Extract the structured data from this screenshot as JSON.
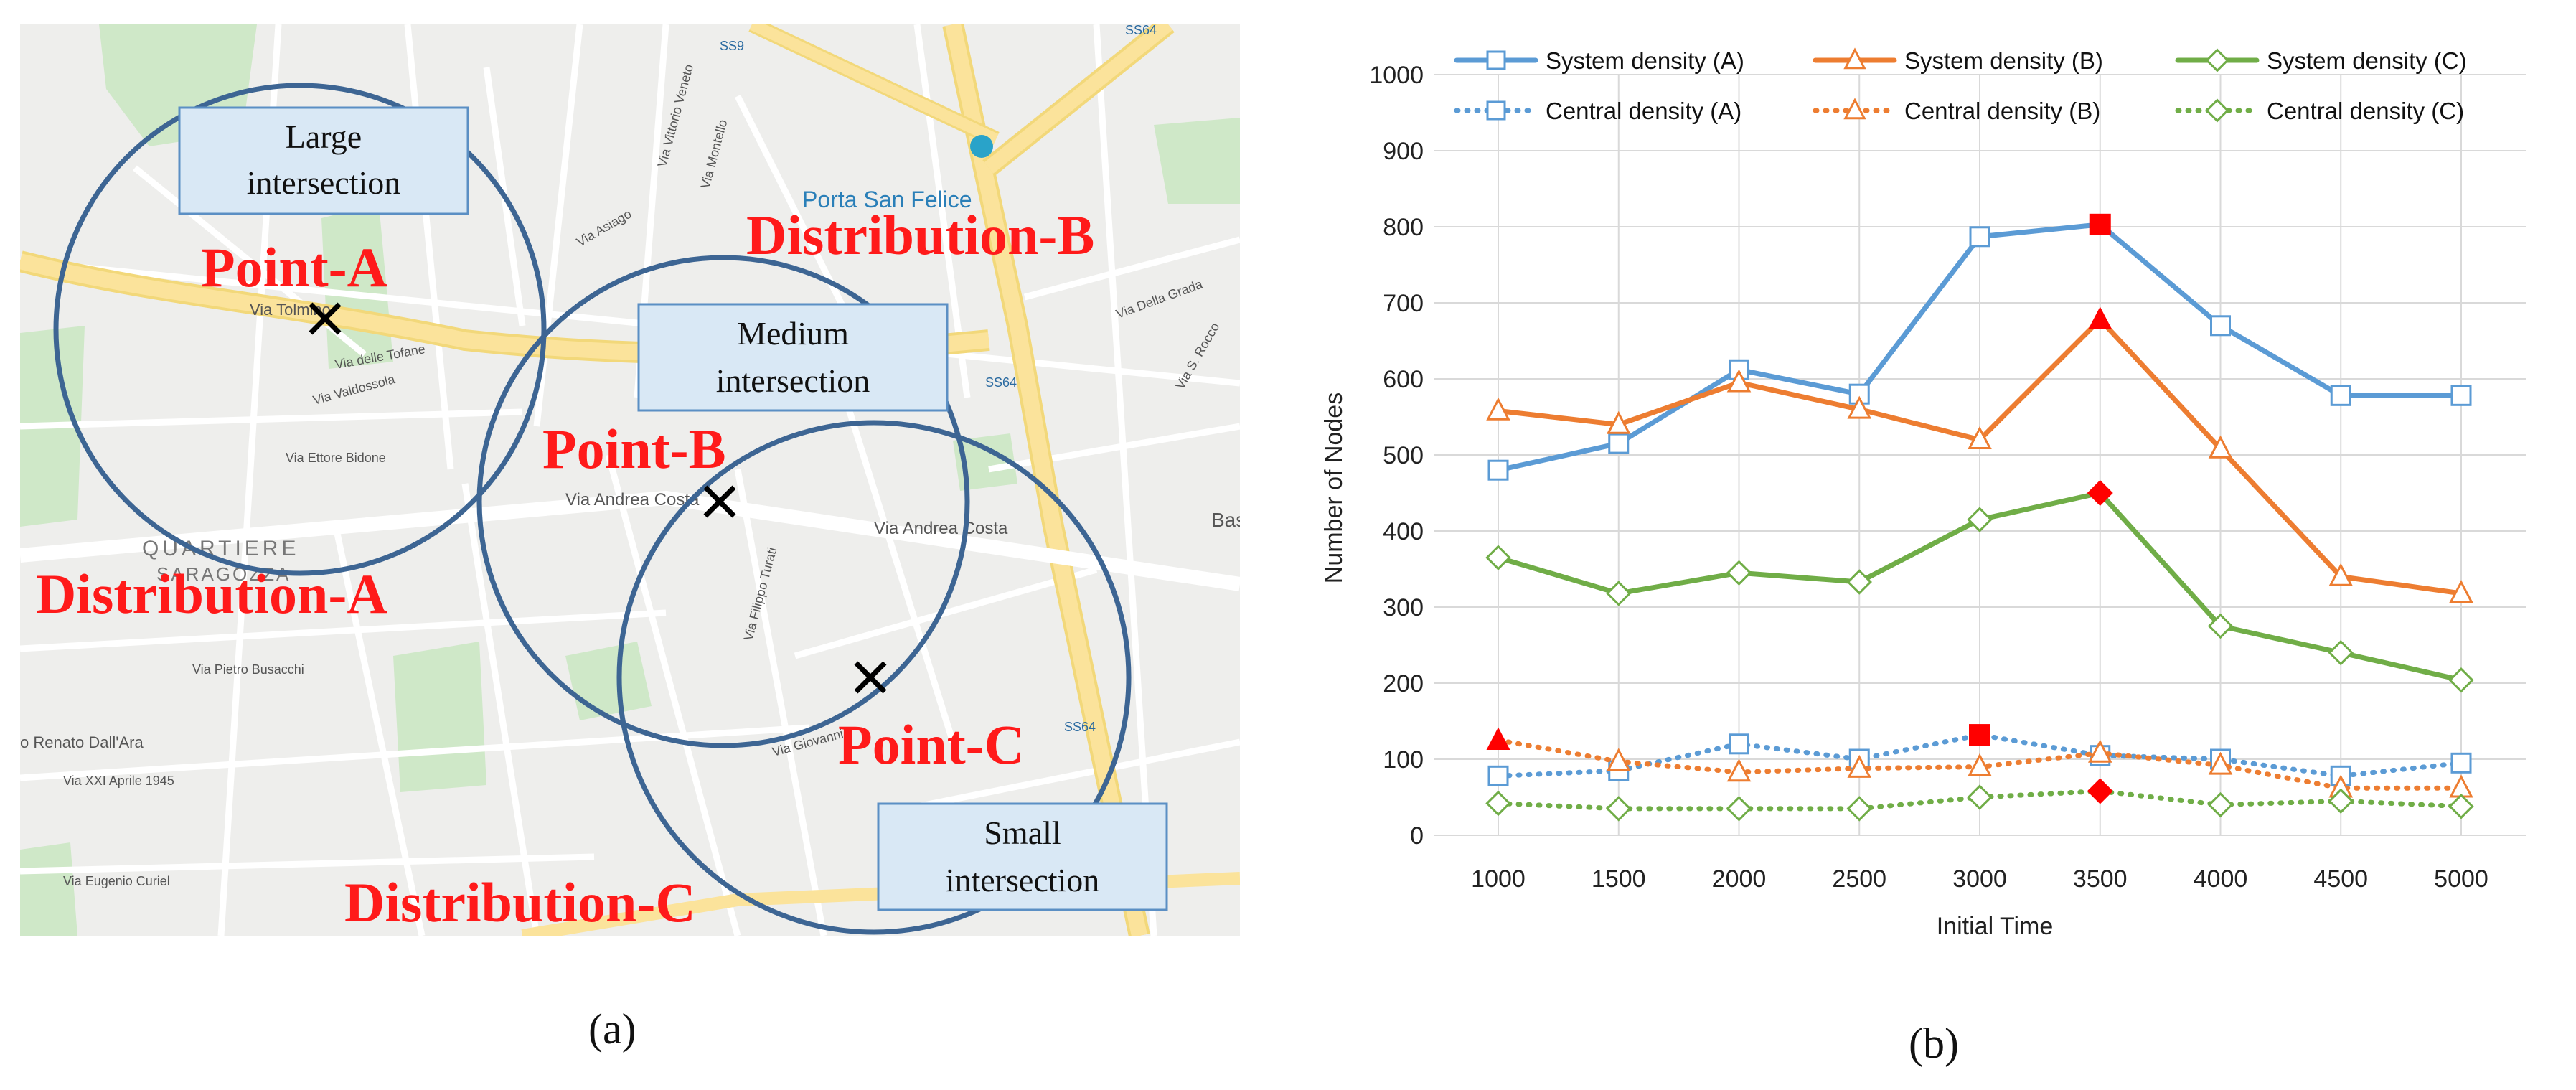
{
  "panel_a": {
    "caption": "(a)",
    "map_labels": {
      "point_a": "Point-A",
      "point_b": "Point-B",
      "point_c": "Point-C",
      "distribution_a": "Distribution-A",
      "distribution_b": "Distribution-B",
      "distribution_c": "Distribution-C"
    },
    "boxes": {
      "large": [
        "Large",
        "intersection"
      ],
      "medium": [
        "Medium",
        "intersection"
      ],
      "small": [
        "Small",
        "intersection"
      ]
    },
    "street_names": {
      "porta_san_felice": "Porta San Felice",
      "via_andrea_costa_1": "Via Andrea Costa",
      "via_andrea_costa_2": "Via Andrea Costa",
      "via_tolmino": "Via Tolmino",
      "quartiere": "QUARTIERE",
      "saragozza": "SARAGOZZA",
      "ss9": "SS9",
      "ss64a": "SS64",
      "ss64b": "SS64",
      "ss64c": "SS64",
      "renato": "o Renato Dall'Ara",
      "via_filippo_turati": "Via Filippo Turati",
      "via_pietro_busacchi": "Via Pietro Busacchi",
      "via_xxi_aprile": "Via XXI Aprile 1945",
      "via_eugenio_curiel": "Via Eugenio Curiel",
      "via_della_grada": "Via Della Grada",
      "via_s_rocco": "Via S. Rocco",
      "via_vittorio_veneto": "Via Vittorio Veneto",
      "via_montello": "Via Montello",
      "via_asiago": "Via Asiago",
      "via_delle_tofane": "Via delle Tofane",
      "via_valdossola": "Via Valdossola",
      "via_ettore_bidone": "Via Ettore Bidone",
      "via_giovanni": "Via Giovanni",
      "bas": "Bas"
    }
  },
  "panel_b": {
    "caption": "(b)"
  },
  "chart_data": {
    "type": "line",
    "title": "",
    "xlabel": "Initial Time",
    "ylabel": "Number of Nodes",
    "x": [
      1000,
      1500,
      2000,
      2500,
      3000,
      3500,
      4000,
      4500,
      5000
    ],
    "ylim": [
      0,
      1000
    ],
    "yticks": [
      0,
      100,
      200,
      300,
      400,
      500,
      600,
      700,
      800,
      900,
      1000
    ],
    "grid": "horizontal",
    "legend_position": "top",
    "series": [
      {
        "name": "System density (A)",
        "marker": "square",
        "style": "solid",
        "color": "#5b9bd5",
        "values": [
          480,
          515,
          612,
          580,
          787,
          803,
          670,
          578,
          578
        ],
        "highlight_index": 5
      },
      {
        "name": "System density (B)",
        "marker": "triangle",
        "style": "solid",
        "color": "#ed7d31",
        "values": [
          558,
          540,
          595,
          560,
          520,
          678,
          508,
          340,
          318
        ],
        "highlight_index": 5
      },
      {
        "name": "System density (C)",
        "marker": "diamond",
        "style": "solid",
        "color": "#70ad47",
        "values": [
          365,
          318,
          345,
          333,
          415,
          450,
          275,
          240,
          204
        ],
        "highlight_index": 5
      },
      {
        "name": "Central density (A)",
        "marker": "square",
        "style": "dotted",
        "color": "#5b9bd5",
        "values": [
          78,
          85,
          120,
          100,
          132,
          105,
          100,
          78,
          95
        ],
        "highlight_index": 4
      },
      {
        "name": "Central density (B)",
        "marker": "triangle",
        "style": "dotted",
        "color": "#ed7d31",
        "values": [
          125,
          97,
          83,
          88,
          90,
          108,
          92,
          62,
          62
        ],
        "highlight_index": 0
      },
      {
        "name": "Central density (C)",
        "marker": "diamond",
        "style": "dotted",
        "color": "#70ad47",
        "values": [
          42,
          35,
          35,
          35,
          50,
          58,
          40,
          45,
          38
        ],
        "highlight_index": 5
      }
    ],
    "highlight_color": "#ff0000"
  }
}
